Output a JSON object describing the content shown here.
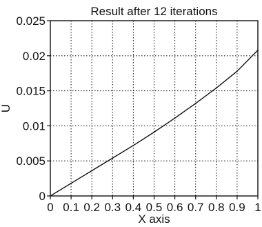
{
  "chart_data": {
    "type": "line",
    "title": "Result after 12 iterations",
    "xlabel": "X axis",
    "ylabel": "U",
    "xlim": [
      0,
      1
    ],
    "ylim": [
      0,
      0.025
    ],
    "grid": true,
    "x_ticks": [
      "0",
      "0.1",
      "0.2",
      "0.3",
      "0.4",
      "0.5",
      "0.6",
      "0.7",
      "0.8",
      "0.9",
      "1"
    ],
    "y_ticks": [
      "0",
      "0.005",
      "0.01",
      "0.015",
      "0.02",
      "0.025"
    ],
    "series": [
      {
        "x": [
          0,
          0.1,
          0.2,
          0.3,
          0.4,
          0.5,
          0.6,
          0.7,
          0.8,
          0.9,
          1.0
        ],
        "values": [
          0,
          0.0018,
          0.0036,
          0.0054,
          0.0072,
          0.0091,
          0.0111,
          0.0132,
          0.0154,
          0.0178,
          0.0208
        ]
      }
    ]
  }
}
